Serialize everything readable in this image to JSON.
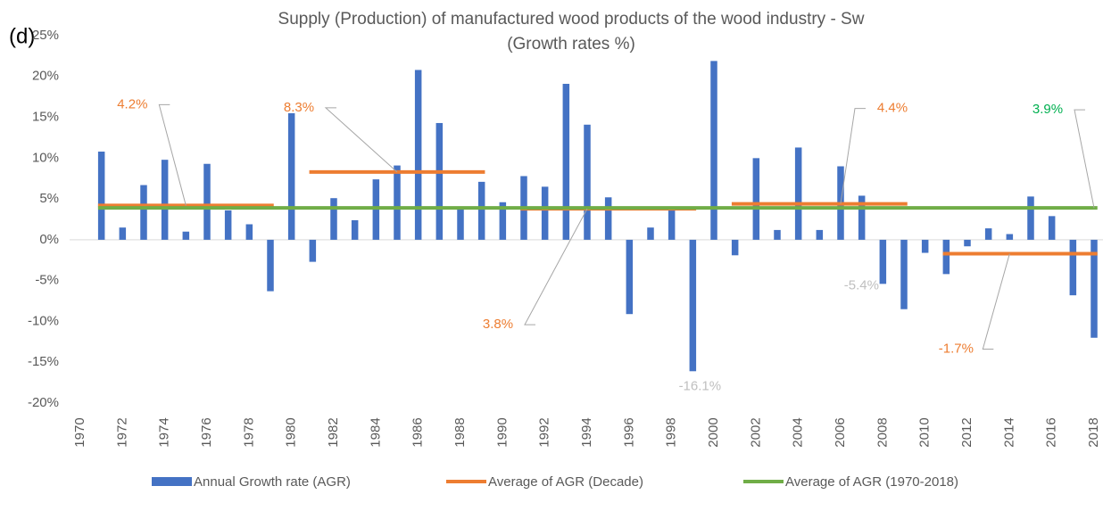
{
  "chart_data": {
    "type": "bar",
    "panel_label": "(d)",
    "title": "Supply (Production) of manufactured wood products of the wood industry - Sw",
    "subtitle": "(Growth rates %)",
    "categories": [
      "1970",
      null,
      "1972",
      null,
      "1974",
      null,
      "1976",
      null,
      "1978",
      null,
      "1980",
      null,
      "1982",
      null,
      "1984",
      null,
      "1986",
      null,
      "1988",
      null,
      "1990",
      null,
      "1992",
      null,
      "1994",
      null,
      "1996",
      null,
      "1998",
      null,
      "2000",
      null,
      "2002",
      null,
      "2004",
      null,
      "2006",
      null,
      "2008",
      null,
      "2010",
      null,
      "2012",
      null,
      "2014",
      null,
      "2016",
      null,
      "2018"
    ],
    "ylim": [
      -20,
      25
    ],
    "yticks": [
      {
        "value": 25,
        "label": "25%"
      },
      {
        "value": 20,
        "label": "20%"
      },
      {
        "value": 15,
        "label": "15%"
      },
      {
        "value": 10,
        "label": "10%"
      },
      {
        "value": 5,
        "label": "5%"
      },
      {
        "value": 0,
        "label": "0%"
      },
      {
        "value": -5,
        "label": "-5%"
      },
      {
        "value": -10,
        "label": "-10%"
      },
      {
        "value": -15,
        "label": "-15%"
      },
      {
        "value": -20,
        "label": "-20%"
      }
    ],
    "legend": "bottom",
    "series": [
      {
        "name": "Annual Growth rate (AGR)",
        "type": "bar",
        "color": "#4472c4",
        "label_color": "#bfbfbf",
        "values": [
          null,
          10.8,
          1.5,
          6.7,
          9.8,
          1.0,
          9.3,
          3.6,
          1.9,
          -6.3,
          15.5,
          -2.7,
          5.1,
          2.4,
          7.4,
          9.1,
          20.8,
          14.3,
          3.8,
          7.1,
          4.6,
          7.8,
          6.5,
          19.1,
          14.1,
          5.2,
          -9.1,
          1.5,
          3.6,
          -16.1,
          21.9,
          -1.9,
          10.0,
          1.2,
          11.3,
          1.2,
          9.0,
          5.4,
          -5.4,
          -8.5,
          -1.6,
          -4.2,
          -0.8,
          1.4,
          0.7,
          5.3,
          2.9,
          -6.8,
          -12.0
        ],
        "value_labels": [
          null,
          null,
          null,
          null,
          null,
          null,
          null,
          null,
          null,
          null,
          null,
          null,
          null,
          null,
          null,
          null,
          null,
          null,
          null,
          null,
          null,
          null,
          null,
          null,
          null,
          null,
          null,
          null,
          null,
          "-16.1%",
          null,
          null,
          null,
          null,
          null,
          null,
          null,
          null,
          "-5.4%",
          null,
          null,
          null,
          null,
          null,
          null,
          null,
          null,
          null,
          null
        ]
      },
      {
        "name": "Average of AGR (Decade)",
        "type": "line",
        "color": "#ed7d31",
        "label_color": "#ed7d31",
        "values": [
          null,
          4.2,
          4.2,
          4.2,
          4.2,
          4.2,
          4.2,
          4.2,
          4.2,
          4.2,
          null,
          8.3,
          8.3,
          8.3,
          8.3,
          8.3,
          8.3,
          8.3,
          8.3,
          8.3,
          null,
          3.8,
          3.8,
          3.8,
          3.8,
          3.8,
          3.8,
          3.8,
          3.8,
          3.8,
          null,
          4.4,
          4.4,
          4.4,
          4.4,
          4.4,
          4.4,
          4.4,
          4.4,
          4.4,
          null,
          -1.7,
          -1.7,
          -1.7,
          -1.7,
          -1.7,
          -1.7,
          -1.7,
          -1.7
        ],
        "value_labels": [
          null,
          null,
          null,
          null,
          null,
          "4.2%",
          null,
          null,
          null,
          null,
          null,
          null,
          null,
          null,
          null,
          "8.3%",
          null,
          null,
          null,
          null,
          null,
          null,
          null,
          null,
          "3.8%",
          null,
          null,
          null,
          null,
          null,
          null,
          null,
          null,
          null,
          null,
          null,
          "4.4%",
          null,
          null,
          null,
          null,
          null,
          null,
          null,
          "-1.7%",
          null,
          null,
          null,
          null
        ]
      },
      {
        "name": "Average of AGR (1970-2018)",
        "type": "line",
        "color": "#70ad47",
        "label_color": "#00b050",
        "values": [
          null,
          3.9,
          3.9,
          3.9,
          3.9,
          3.9,
          3.9,
          3.9,
          3.9,
          3.9,
          3.9,
          3.9,
          3.9,
          3.9,
          3.9,
          3.9,
          3.9,
          3.9,
          3.9,
          3.9,
          3.9,
          3.9,
          3.9,
          3.9,
          3.9,
          3.9,
          3.9,
          3.9,
          3.9,
          3.9,
          3.9,
          3.9,
          3.9,
          3.9,
          3.9,
          3.9,
          3.9,
          3.9,
          3.9,
          3.9,
          3.9,
          3.9,
          3.9,
          3.9,
          3.9,
          3.9,
          3.9,
          3.9,
          3.9
        ],
        "value_labels": [
          null,
          null,
          null,
          null,
          null,
          null,
          null,
          null,
          null,
          null,
          null,
          null,
          null,
          null,
          null,
          null,
          null,
          null,
          null,
          null,
          null,
          null,
          null,
          null,
          null,
          null,
          null,
          null,
          null,
          null,
          null,
          null,
          null,
          null,
          null,
          null,
          null,
          null,
          null,
          null,
          null,
          null,
          null,
          null,
          null,
          null,
          null,
          null,
          "3.9%"
        ]
      }
    ]
  }
}
